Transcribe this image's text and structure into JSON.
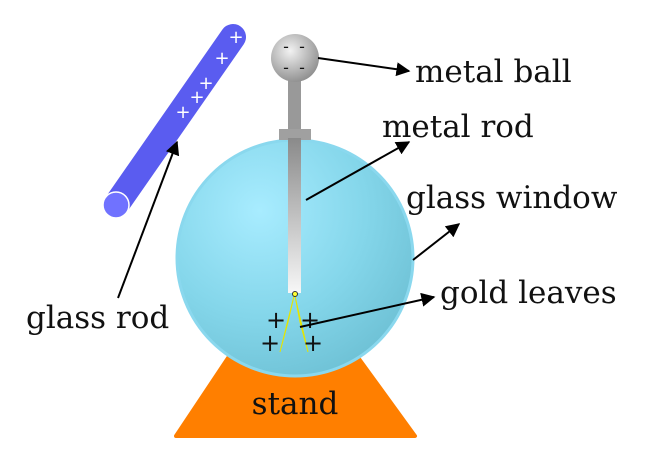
{
  "labels": {
    "metal_ball": "metal ball",
    "metal_rod": "metal rod",
    "glass_window": "glass window",
    "gold_leaves": "gold leaves",
    "glass_rod": "glass rod",
    "stand": "stand"
  },
  "charges": {
    "ball": [
      "-",
      "-",
      "-",
      "-"
    ],
    "glass_rod": [
      "+",
      "+",
      "+",
      "+",
      "+"
    ],
    "leaves": [
      "+",
      "+",
      "+",
      "+"
    ]
  },
  "colors": {
    "stand": "#ff7f00",
    "glass_window": "#7fd3e6",
    "glass_rod": "#5a5cf0",
    "gold_leaves": "#ffff33",
    "metal_rod": "#9e9e9e",
    "metal_ball": "#a8a8a8"
  }
}
